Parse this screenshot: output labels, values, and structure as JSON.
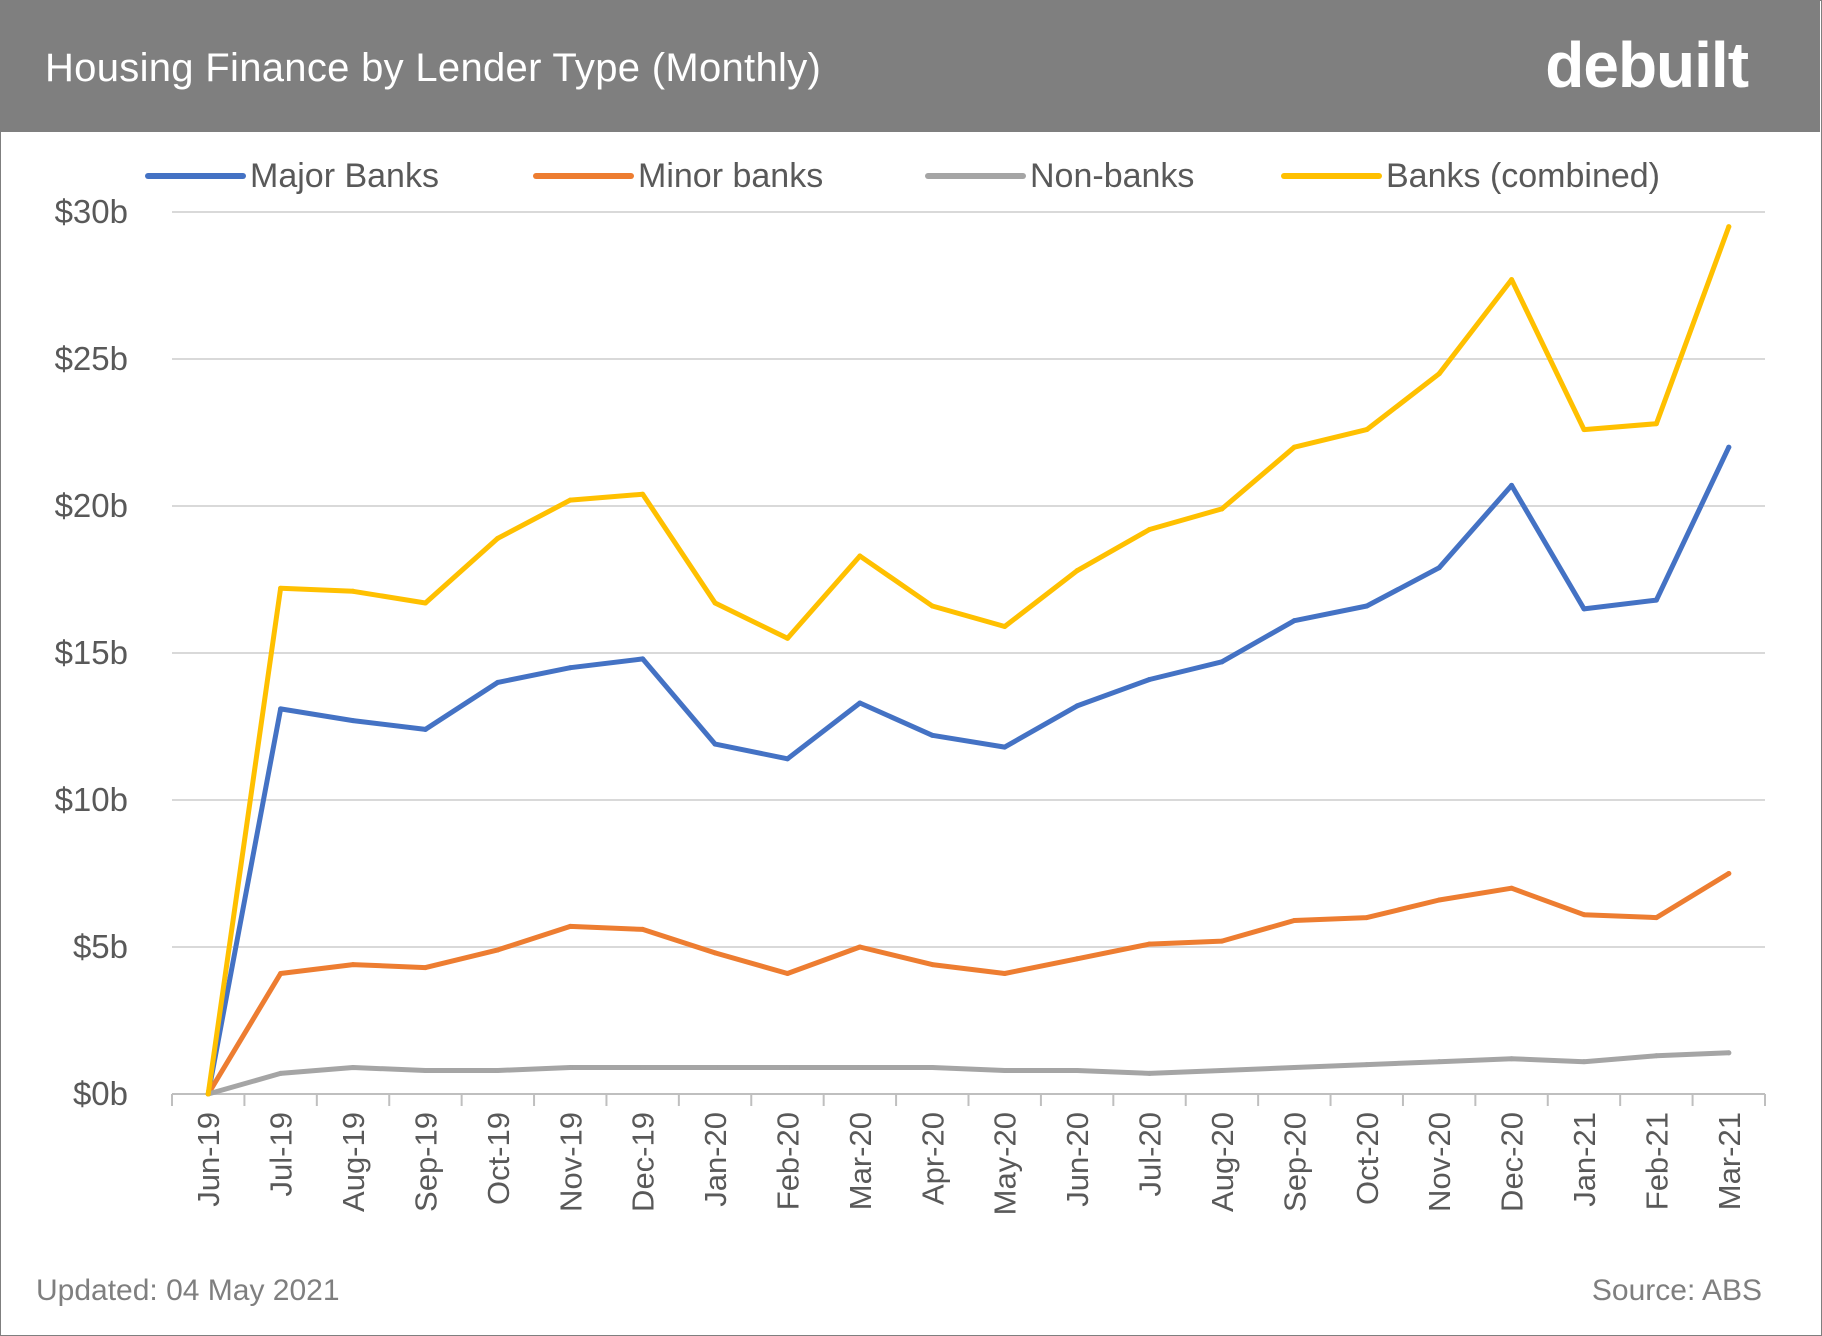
{
  "header": {
    "title": "Housing Finance by Lender Type (Monthly)",
    "logo_text": "debuilt"
  },
  "footer": {
    "updated": "Updated: 04 May 2021",
    "source": "Source: ABS"
  },
  "colors": {
    "header_bg": "#7f7f7f",
    "major_banks": "#4472c4",
    "minor_banks": "#ed7d31",
    "non_banks": "#a5a5a5",
    "banks_combined": "#ffc000",
    "gridline": "#d9d9d9"
  },
  "chart_data": {
    "type": "line",
    "title": "Housing Finance by Lender Type (Monthly)",
    "xlabel": "",
    "ylabel": "",
    "ylim": [
      0,
      30
    ],
    "y_unit": "billion AUD",
    "yticks": [
      0,
      5,
      10,
      15,
      20,
      25,
      30
    ],
    "ytick_labels": [
      "$0b",
      "$5b",
      "$10b",
      "$15b",
      "$20b",
      "$25b",
      "$30b"
    ],
    "grid": "horizontal",
    "legend_position": "top",
    "categories": [
      "Jun-19",
      "Jul-19",
      "Aug-19",
      "Sep-19",
      "Oct-19",
      "Nov-19",
      "Dec-19",
      "Jan-20",
      "Feb-20",
      "Mar-20",
      "Apr-20",
      "May-20",
      "Jun-20",
      "Jul-20",
      "Aug-20",
      "Sep-20",
      "Oct-20",
      "Nov-20",
      "Dec-20",
      "Jan-21",
      "Feb-21",
      "Mar-21"
    ],
    "series": [
      {
        "name": "Major Banks",
        "color": "#4472c4",
        "values": [
          0,
          13.1,
          12.7,
          12.4,
          14.0,
          14.5,
          14.8,
          11.9,
          11.4,
          13.3,
          12.2,
          11.8,
          13.2,
          14.1,
          14.7,
          16.1,
          16.6,
          17.9,
          20.7,
          16.5,
          16.8,
          22.0
        ]
      },
      {
        "name": "Minor banks",
        "color": "#ed7d31",
        "values": [
          0,
          4.1,
          4.4,
          4.3,
          4.9,
          5.7,
          5.6,
          4.8,
          4.1,
          5.0,
          4.4,
          4.1,
          4.6,
          5.1,
          5.2,
          5.9,
          6.0,
          6.6,
          7.0,
          6.1,
          6.0,
          7.5
        ]
      },
      {
        "name": "Non-banks",
        "color": "#a5a5a5",
        "values": [
          0,
          0.7,
          0.9,
          0.8,
          0.8,
          0.9,
          0.9,
          0.9,
          0.9,
          0.9,
          0.9,
          0.8,
          0.8,
          0.7,
          0.8,
          0.9,
          1.0,
          1.1,
          1.2,
          1.1,
          1.3,
          1.4
        ]
      },
      {
        "name": "Banks (combined)",
        "color": "#ffc000",
        "values": [
          0,
          17.2,
          17.1,
          16.7,
          18.9,
          20.2,
          20.4,
          16.7,
          15.5,
          18.3,
          16.6,
          15.9,
          17.8,
          19.2,
          19.9,
          22.0,
          22.6,
          24.5,
          27.7,
          22.6,
          22.8,
          29.5
        ]
      }
    ]
  }
}
